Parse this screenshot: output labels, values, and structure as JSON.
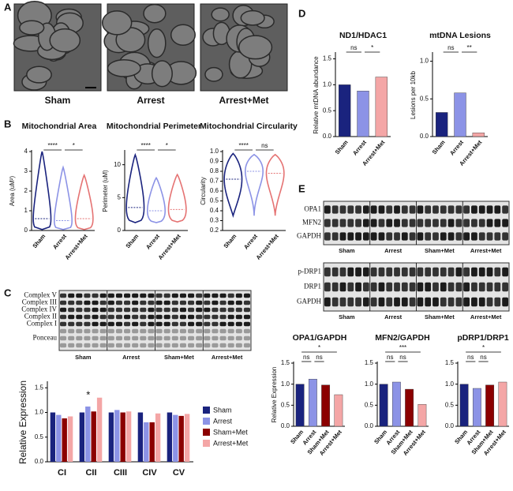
{
  "panel_labels": [
    "A",
    "B",
    "C",
    "D",
    "E"
  ],
  "panel_a": {
    "images": [
      "Sham",
      "Arrest",
      "Arrest+Met"
    ]
  },
  "panel_c_blot": {
    "bands": [
      "Complex V",
      "Complex III",
      "Complex IV",
      "Complex II",
      "Complex I",
      "Ponceau"
    ],
    "groups": [
      "Sham",
      "Arrest",
      "Sham+Met",
      "Arrest+Met"
    ]
  },
  "panel_e_blots": {
    "top": {
      "bands": [
        "OPA1",
        "MFN2",
        "GAPDH"
      ],
      "groups": [
        "Sham",
        "Arrest",
        "Sham+Met",
        "Arrest+Met"
      ]
    },
    "bottom": {
      "bands": [
        "p-DRP1",
        "DRP1",
        "GAPDH"
      ],
      "groups": [
        "Sham",
        "Arrest",
        "Sham+Met",
        "Arrest+Met"
      ]
    }
  },
  "chart_data": [
    {
      "type": "violin",
      "title": "Mitochondrial Area",
      "ylabel": "Area (uM²)",
      "categories": [
        "Sham",
        "Arrest",
        "Arrest+Met"
      ],
      "medians": [
        0.6,
        0.5,
        0.6
      ],
      "mins": [
        0.05,
        0.05,
        0.05
      ],
      "maxs": [
        4,
        3.2,
        2.8
      ],
      "colors": [
        "#1a237e",
        "#8c93e6",
        "#e57373"
      ],
      "ylim": [
        0,
        4
      ],
      "yticks": [
        0,
        1,
        2,
        3,
        4
      ],
      "annotations": [
        "****",
        "*"
      ]
    },
    {
      "type": "violin",
      "title": "Mitochondrial Perimeter",
      "ylabel": "Perimeter (uM)",
      "categories": [
        "Sham",
        "Arrest",
        "Arrest+Met"
      ],
      "medians": [
        3.5,
        3,
        3.2
      ],
      "mins": [
        1.2,
        1.2,
        1.3
      ],
      "maxs": [
        11.5,
        8,
        8.5
      ],
      "colors": [
        "#1a237e",
        "#8c93e6",
        "#e57373"
      ],
      "ylim": [
        0,
        12
      ],
      "yticks": [
        0,
        5,
        10
      ],
      "annotations": [
        "****",
        "*"
      ]
    },
    {
      "type": "violin",
      "title": "Mitochondrial Circularity",
      "ylabel": "Circularity",
      "categories": [
        "Sham",
        "Arrest",
        "Arrest+Met"
      ],
      "medians": [
        0.72,
        0.8,
        0.78
      ],
      "mins": [
        0.35,
        0.35,
        0.35
      ],
      "maxs": [
        0.98,
        0.97,
        0.97
      ],
      "colors": [
        "#1a237e",
        "#8c93e6",
        "#e57373"
      ],
      "ylim": [
        0.2,
        1.0
      ],
      "yticks": [
        0.2,
        0.3,
        0.4,
        0.5,
        0.6,
        0.7,
        0.8,
        0.9,
        {
          "value": 1.0,
          "label": "1.0"
        }
      ],
      "annotations": [
        "****",
        "ns"
      ]
    },
    {
      "type": "grouped-bar",
      "ylabel": "Relative Expression",
      "categories": [
        "CI",
        "CII",
        "CIII",
        "CIV",
        "CV"
      ],
      "series": [
        {
          "name": "Sham",
          "color": "#1a237e",
          "values": [
            1.0,
            1.0,
            1.0,
            1.0,
            1.0
          ]
        },
        {
          "name": "Arrest",
          "color": "#8c93e6",
          "values": [
            0.95,
            1.12,
            1.05,
            0.8,
            0.95
          ]
        },
        {
          "name": "Sham+Met",
          "color": "#8b0000",
          "values": [
            0.88,
            1.02,
            1.0,
            0.8,
            0.93
          ]
        },
        {
          "name": "Arrest+Met",
          "color": "#f4a6a6",
          "values": [
            0.92,
            1.3,
            1.02,
            0.98,
            0.97
          ]
        }
      ],
      "ylim": [
        0,
        1.6
      ],
      "yticks": [
        {
          "value": 0,
          "label": "0.0"
        },
        0.5,
        {
          "value": 1,
          "label": "1.0"
        },
        1.5
      ],
      "legend": "right",
      "annotations": [
        "*"
      ]
    },
    {
      "type": "bar",
      "title": "ND1/HDAC1",
      "ylabel": "Relative mtDNA abundance",
      "categories": [
        "Sham",
        "Arrest",
        "Arrest+Met"
      ],
      "values": [
        1.0,
        0.88,
        1.15
      ],
      "colors": [
        "#1a237e",
        "#8c93e6",
        "#f4a6a6"
      ],
      "ylim": [
        0,
        1.6
      ],
      "yticks": [
        {
          "value": 0,
          "label": "0.0"
        },
        0.5,
        {
          "value": 1,
          "label": "1.0"
        },
        1.5
      ],
      "annotations": [
        "ns",
        "*"
      ]
    },
    {
      "type": "bar",
      "title": "mtDNA Lesions",
      "ylabel": "Lesions per 10kb",
      "categories": [
        "Sham",
        "Arrest",
        "Arrest+Met"
      ],
      "values": [
        0.32,
        0.58,
        0.05
      ],
      "colors": [
        "#1a237e",
        "#8c93e6",
        "#f4a6a6"
      ],
      "ylim": [
        0,
        1.1
      ],
      "yticks": [
        {
          "value": 0,
          "label": "0.0"
        },
        0.5,
        {
          "value": 1,
          "label": "1.0"
        }
      ],
      "annotations": [
        "ns",
        "**"
      ]
    },
    {
      "type": "bar",
      "title": "OPA1/GAPDH",
      "ylabel": "Relative Expression",
      "categories": [
        "Sham",
        "Arrest",
        "Sham+Met",
        "Arrest+Met"
      ],
      "values": [
        1.0,
        1.12,
        0.98,
        0.75
      ],
      "colors": [
        "#1a237e",
        "#8c93e6",
        "#8b0000",
        "#f4a6a6"
      ],
      "ylim": [
        0,
        1.5
      ],
      "yticks": [
        {
          "value": 0,
          "label": "0.0"
        },
        0.5,
        {
          "value": 1,
          "label": "1.0"
        },
        1.5
      ],
      "annotations": [
        "ns",
        "ns",
        "*"
      ]
    },
    {
      "type": "bar",
      "title": "MFN2/GAPDH",
      "categories": [
        "Sham",
        "Arrest",
        "Sham+Met",
        "Arrest+Met"
      ],
      "values": [
        1.0,
        1.05,
        0.88,
        0.52
      ],
      "colors": [
        "#1a237e",
        "#8c93e6",
        "#8b0000",
        "#f4a6a6"
      ],
      "ylim": [
        0,
        1.5
      ],
      "yticks": [
        {
          "value": 0,
          "label": "0.0"
        },
        0.5,
        {
          "value": 1,
          "label": "1.0"
        },
        1.5
      ],
      "annotations": [
        "ns",
        "ns",
        "***"
      ]
    },
    {
      "type": "bar",
      "title": "pDRP1/DRP1",
      "categories": [
        "Sham",
        "Arrest",
        "Sham+Met",
        "Arrest+Met"
      ],
      "values": [
        1.0,
        0.9,
        0.98,
        1.05
      ],
      "colors": [
        "#1a237e",
        "#8c93e6",
        "#8b0000",
        "#f4a6a6"
      ],
      "ylim": [
        0,
        1.5
      ],
      "yticks": [
        {
          "value": 0,
          "label": "0.0"
        },
        0.5,
        {
          "value": 1,
          "label": "1.0"
        },
        1.5
      ],
      "annotations": [
        "ns",
        "ns",
        "*"
      ]
    }
  ]
}
